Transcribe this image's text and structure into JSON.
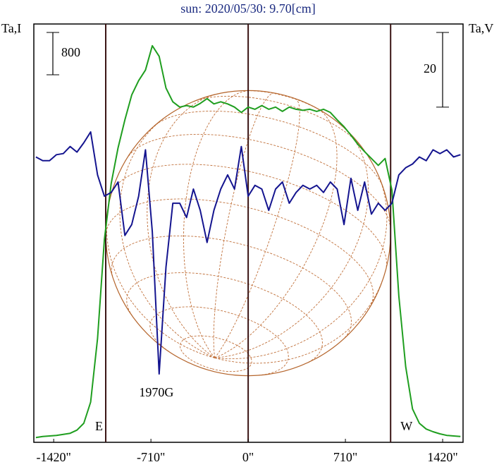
{
  "chart_data": {
    "type": "line",
    "title": "sun: 2020/05/30: 9.70[cm]",
    "y_label": "Ta,I",
    "y2_label": "Ta,V",
    "i_scale_bar": 800,
    "v_scale_bar": 20,
    "limb_lines": [
      -1040,
      0,
      1040
    ],
    "disk_radius": 1040,
    "east_label": "E",
    "west_label": "W",
    "annotation": {
      "text": "1970G",
      "x": -670
    },
    "xlim": [
      -1565,
      1569
    ],
    "xticks": [
      {
        "value": -1420,
        "label": "-1420\""
      },
      {
        "value": -710,
        "label": "-710\""
      },
      {
        "value": 0,
        "label": "0\""
      },
      {
        "value": 710,
        "label": "710\""
      },
      {
        "value": 1420,
        "label": "1420\""
      }
    ],
    "ylim": [
      0,
      7900
    ],
    "y2lim": [
      -56,
      56
    ],
    "x": [
      -1550,
      -1500,
      -1450,
      -1400,
      -1350,
      -1300,
      -1250,
      -1200,
      -1150,
      -1100,
      -1050,
      -1000,
      -950,
      -900,
      -850,
      -800,
      -750,
      -700,
      -650,
      -600,
      -550,
      -500,
      -450,
      -400,
      -350,
      -300,
      -250,
      -200,
      -150,
      -100,
      -50,
      0,
      50,
      100,
      150,
      200,
      250,
      300,
      350,
      400,
      450,
      500,
      550,
      600,
      650,
      700,
      750,
      800,
      850,
      900,
      950,
      1000,
      1050,
      1100,
      1150,
      1200,
      1250,
      1300,
      1350,
      1400,
      1450,
      1500,
      1550
    ],
    "series": [
      {
        "name": "I",
        "color": "#1f9e1f",
        "values": [
          90,
          110,
          120,
          130,
          150,
          170,
          230,
          360,
          760,
          1960,
          3830,
          4890,
          5560,
          6090,
          6560,
          6830,
          7030,
          7490,
          7290,
          6690,
          6430,
          6330,
          6360,
          6330,
          6400,
          6490,
          6390,
          6430,
          6390,
          6330,
          6230,
          6330,
          6290,
          6360,
          6290,
          6330,
          6250,
          6330,
          6290,
          6270,
          6290,
          6250,
          6290,
          6230,
          6090,
          5960,
          5800,
          5630,
          5490,
          5360,
          5230,
          5360,
          4760,
          2760,
          1430,
          630,
          360,
          250,
          200,
          160,
          130,
          120,
          110
        ]
      },
      {
        "name": "V",
        "color": "#14148f",
        "axis": "y2",
        "values": [
          20.4,
          19.4,
          19.4,
          21.0,
          21.3,
          23.2,
          21.7,
          24.2,
          27.1,
          15.6,
          9.9,
          10.9,
          13.7,
          -0.6,
          2.3,
          9.9,
          22.3,
          0.4,
          -37.7,
          -9.1,
          8.0,
          8.0,
          4.2,
          11.8,
          6.1,
          -2.5,
          6.1,
          11.8,
          15.6,
          11.8,
          23.2,
          9.9,
          12.8,
          11.8,
          6.1,
          11.8,
          13.7,
          8.0,
          10.9,
          12.8,
          11.8,
          12.8,
          10.9,
          13.7,
          11.8,
          2.3,
          14.7,
          6.1,
          13.7,
          5.1,
          8.0,
          6.1,
          8.0,
          15.6,
          17.5,
          18.5,
          20.4,
          19.4,
          22.3,
          21.3,
          22.3,
          20.4,
          21.0
        ]
      }
    ]
  }
}
